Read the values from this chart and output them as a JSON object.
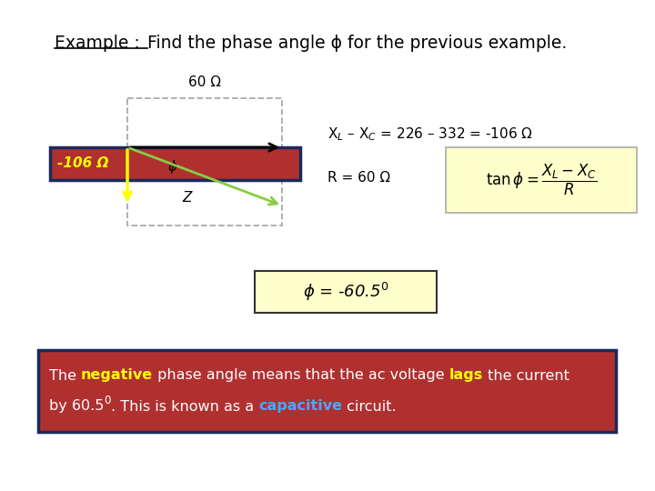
{
  "bg_color": "#ffffff",
  "title_part1": "Example :",
  "title_part2": "Find the phase angle ϕ for the previous example.",
  "diagram": {
    "rect_color": "#b03030",
    "rect_border_color": "#1a2a5a",
    "label_neg106": "-106 Ω",
    "label_60": "60 Ω",
    "label_phi": "ϕ",
    "label_Z": "Z",
    "dashed_color": "#aaaaaa",
    "yellow_color": "#ffff00",
    "green_color": "#88cc44"
  },
  "eq1": "X$_L$ – X$_C$ = 226 – 332 = -106 Ω",
  "eq2": "R = 60 Ω",
  "tan_box_color": "#ffffcc",
  "result_box_color": "#ffffcc",
  "result_text": "ϕ = -60.5$^0$",
  "bottom_box_bg": "#b03030",
  "bottom_box_border": "#1a2a5a",
  "negative_color": "#ffff00",
  "lags_color": "#ffff00",
  "capacitive_color": "#44aaff"
}
